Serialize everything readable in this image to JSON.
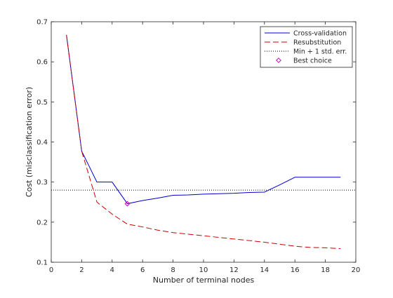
{
  "chart_data": {
    "type": "line",
    "title": "",
    "xlabel": "Number of terminal nodes",
    "ylabel": "Cost (misclassification error)",
    "xlim": [
      0,
      20
    ],
    "ylim": [
      0.1,
      0.7
    ],
    "xticks": [
      0,
      2,
      4,
      6,
      8,
      10,
      12,
      14,
      16,
      18,
      20
    ],
    "yticks": [
      0.1,
      0.2,
      0.3,
      0.4,
      0.5,
      0.6,
      0.7
    ],
    "grid": false,
    "legend_position": "top-right",
    "series": [
      {
        "name": "Cross-validation",
        "color": "#0000cc",
        "line_style": "solid",
        "x": [
          1,
          2,
          3,
          4,
          5,
          6,
          7,
          8,
          9,
          10,
          11,
          12,
          13,
          14,
          15,
          16,
          17,
          18,
          19
        ],
        "y": [
          0.667,
          0.377,
          0.3,
          0.3,
          0.246,
          0.254,
          0.26,
          0.267,
          0.268,
          0.27,
          0.271,
          0.272,
          0.274,
          0.275,
          0.293,
          0.312,
          0.312,
          0.312,
          0.312
        ]
      },
      {
        "name": "Resubstitution",
        "color": "#cc0000",
        "line_style": "dashed",
        "x": [
          1,
          2,
          3,
          4,
          5,
          6,
          7,
          8,
          9,
          10,
          11,
          12,
          13,
          14,
          15,
          16,
          17,
          18,
          19
        ],
        "y": [
          0.667,
          0.377,
          0.25,
          0.22,
          0.195,
          0.188,
          0.18,
          0.174,
          0.17,
          0.166,
          0.162,
          0.158,
          0.154,
          0.15,
          0.145,
          0.14,
          0.137,
          0.136,
          0.134
        ]
      },
      {
        "name": "Min + 1 std. err.",
        "color": "#000000",
        "line_style": "dotted",
        "x": [
          0,
          20
        ],
        "y": [
          0.28,
          0.28
        ]
      },
      {
        "name": "Best choice",
        "color": "#cc00cc",
        "marker": "diamond",
        "x": [
          5
        ],
        "y": [
          0.246
        ]
      }
    ]
  }
}
